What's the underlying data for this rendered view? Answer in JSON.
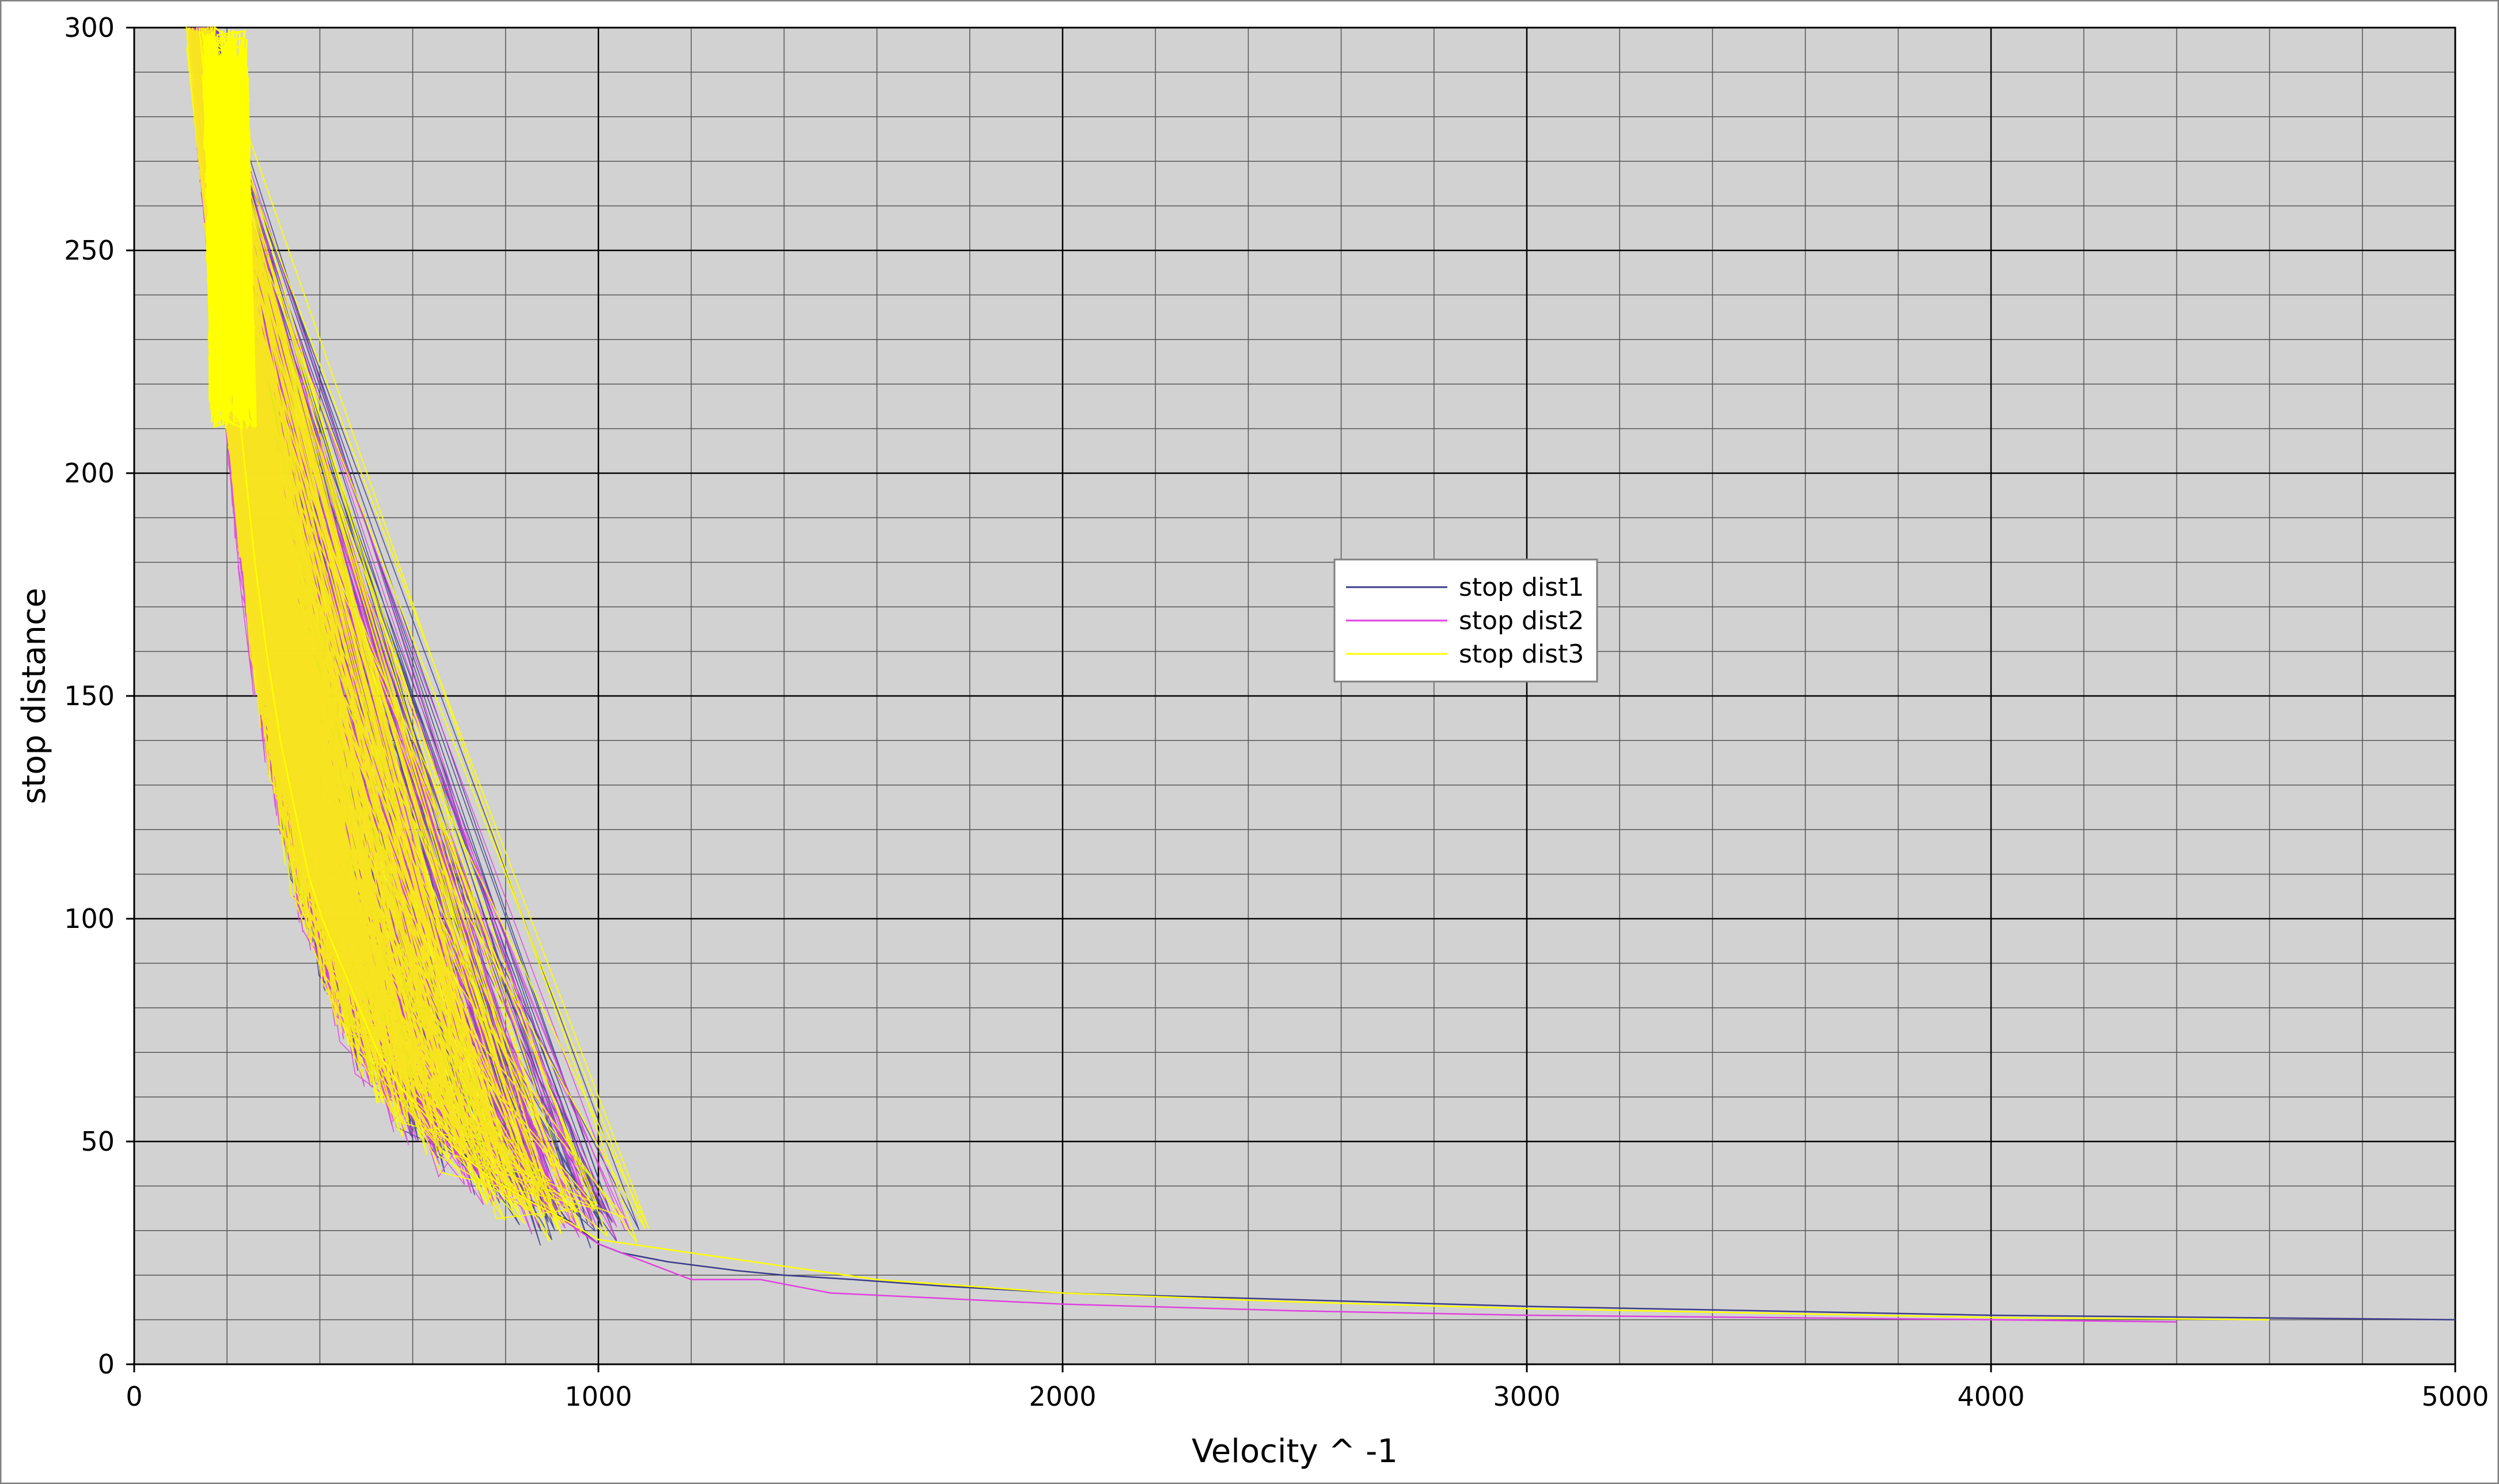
{
  "chart_data": {
    "type": "line",
    "title": "",
    "xlabel": "Velocity ^ -1",
    "ylabel": "stop distance",
    "xlim": [
      0,
      5000
    ],
    "ylim": [
      0,
      300
    ],
    "x_ticks": [
      0,
      1000,
      2000,
      3000,
      4000,
      5000
    ],
    "y_ticks": [
      0,
      50,
      100,
      150,
      200,
      250,
      300
    ],
    "x_minor_step": 200,
    "y_minor_step": 10,
    "grid": true,
    "legend_position": "center",
    "background_color": "#d2d2d2",
    "series": [
      {
        "name": "stop dist1",
        "color": "#3b3b8c",
        "points": [
          [
            150,
            300
          ],
          [
            170,
            280
          ],
          [
            185,
            260
          ],
          [
            205,
            240
          ],
          [
            220,
            220
          ],
          [
            240,
            200
          ],
          [
            265,
            180
          ],
          [
            290,
            160
          ],
          [
            320,
            140
          ],
          [
            350,
            125
          ],
          [
            380,
            110
          ],
          [
            410,
            100
          ],
          [
            450,
            90
          ],
          [
            490,
            80
          ],
          [
            530,
            70
          ],
          [
            580,
            62
          ],
          [
            640,
            55
          ],
          [
            700,
            48
          ],
          [
            770,
            42
          ],
          [
            850,
            37
          ],
          [
            940,
            32
          ],
          [
            1000,
            27
          ],
          [
            1050,
            25
          ],
          [
            1150,
            23
          ],
          [
            1300,
            21
          ],
          [
            1400,
            20
          ],
          [
            1550,
            19
          ],
          [
            1750,
            17.5
          ],
          [
            2000,
            16
          ],
          [
            2500,
            14.5
          ],
          [
            3000,
            13
          ],
          [
            3500,
            12
          ],
          [
            4000,
            11
          ],
          [
            4500,
            10.5
          ],
          [
            5000,
            10
          ]
        ]
      },
      {
        "name": "stop dist2",
        "color": "#e040e0",
        "points": [
          [
            145,
            300
          ],
          [
            160,
            280
          ],
          [
            175,
            260
          ],
          [
            195,
            240
          ],
          [
            215,
            220
          ],
          [
            235,
            200
          ],
          [
            255,
            180
          ],
          [
            280,
            160
          ],
          [
            310,
            140
          ],
          [
            340,
            125
          ],
          [
            370,
            110
          ],
          [
            400,
            100
          ],
          [
            440,
            90
          ],
          [
            480,
            80
          ],
          [
            520,
            70
          ],
          [
            570,
            62
          ],
          [
            630,
            55
          ],
          [
            690,
            48
          ],
          [
            760,
            42
          ],
          [
            840,
            37
          ],
          [
            930,
            32
          ],
          [
            1000,
            27
          ],
          [
            1100,
            23
          ],
          [
            1200,
            19
          ],
          [
            1350,
            19
          ],
          [
            1500,
            16
          ],
          [
            2000,
            13.5
          ],
          [
            2500,
            12
          ],
          [
            3000,
            11
          ],
          [
            3500,
            10.5
          ],
          [
            4000,
            10
          ],
          [
            4400,
            9.5
          ]
        ]
      },
      {
        "name": "stop dist3",
        "color": "#ffff00",
        "points": [
          [
            140,
            300
          ],
          [
            160,
            280
          ],
          [
            180,
            260
          ],
          [
            200,
            240
          ],
          [
            220,
            220
          ],
          [
            240,
            200
          ],
          [
            260,
            180
          ],
          [
            285,
            160
          ],
          [
            315,
            140
          ],
          [
            345,
            125
          ],
          [
            375,
            110
          ],
          [
            405,
            100
          ],
          [
            445,
            90
          ],
          [
            485,
            80
          ],
          [
            525,
            70
          ],
          [
            575,
            62
          ],
          [
            635,
            55
          ],
          [
            695,
            48
          ],
          [
            765,
            42
          ],
          [
            845,
            37
          ],
          [
            935,
            32
          ],
          [
            1000,
            28
          ],
          [
            1200,
            25
          ],
          [
            1400,
            22
          ],
          [
            1600,
            19
          ],
          [
            2000,
            16
          ],
          [
            2500,
            14
          ],
          [
            3000,
            12.5
          ],
          [
            3500,
            11.5
          ],
          [
            4000,
            10.5
          ],
          [
            4600,
            10
          ]
        ]
      }
    ]
  }
}
